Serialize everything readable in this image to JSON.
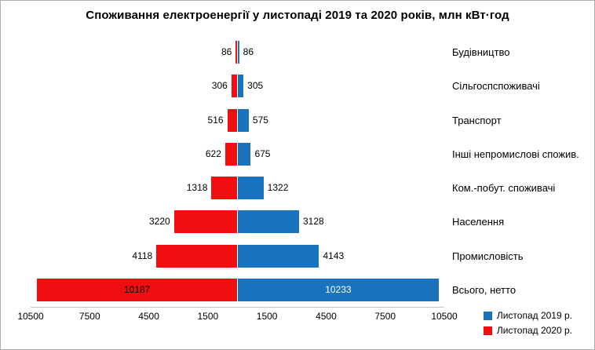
{
  "title": "Споживання електроенергії у листопаді 2019 та 2020  років, млн кВт·год",
  "chart_data": {
    "type": "bar",
    "subtype": "tornado",
    "title": "Споживання електроенергії у листопаді 2019 та 2020  років, млн кВт·год",
    "categories": [
      "Будівництво",
      "Сільгоспспоживачі",
      "Транспорт",
      "Інші непромислові спожив.",
      "Ком.-побут. споживачі",
      "Населення",
      "Промисловість",
      "Всього, нетто"
    ],
    "series": [
      {
        "name": "Листопад 2019 р.",
        "side": "right",
        "color": "#1a73be",
        "values": [
          86,
          305,
          575,
          675,
          1322,
          3128,
          4143,
          10233
        ]
      },
      {
        "name": "Листопад 2020 р.",
        "side": "left",
        "color": "#f10e10",
        "values": [
          86,
          306,
          516,
          622,
          1318,
          3220,
          4118,
          10187
        ]
      }
    ],
    "axis_ticks": [
      10500,
      7500,
      4500,
      1500,
      1500,
      4500,
      7500,
      10500
    ],
    "xlim": [
      -10500,
      10500
    ],
    "grid": false,
    "legend_position": "bottom-right"
  }
}
